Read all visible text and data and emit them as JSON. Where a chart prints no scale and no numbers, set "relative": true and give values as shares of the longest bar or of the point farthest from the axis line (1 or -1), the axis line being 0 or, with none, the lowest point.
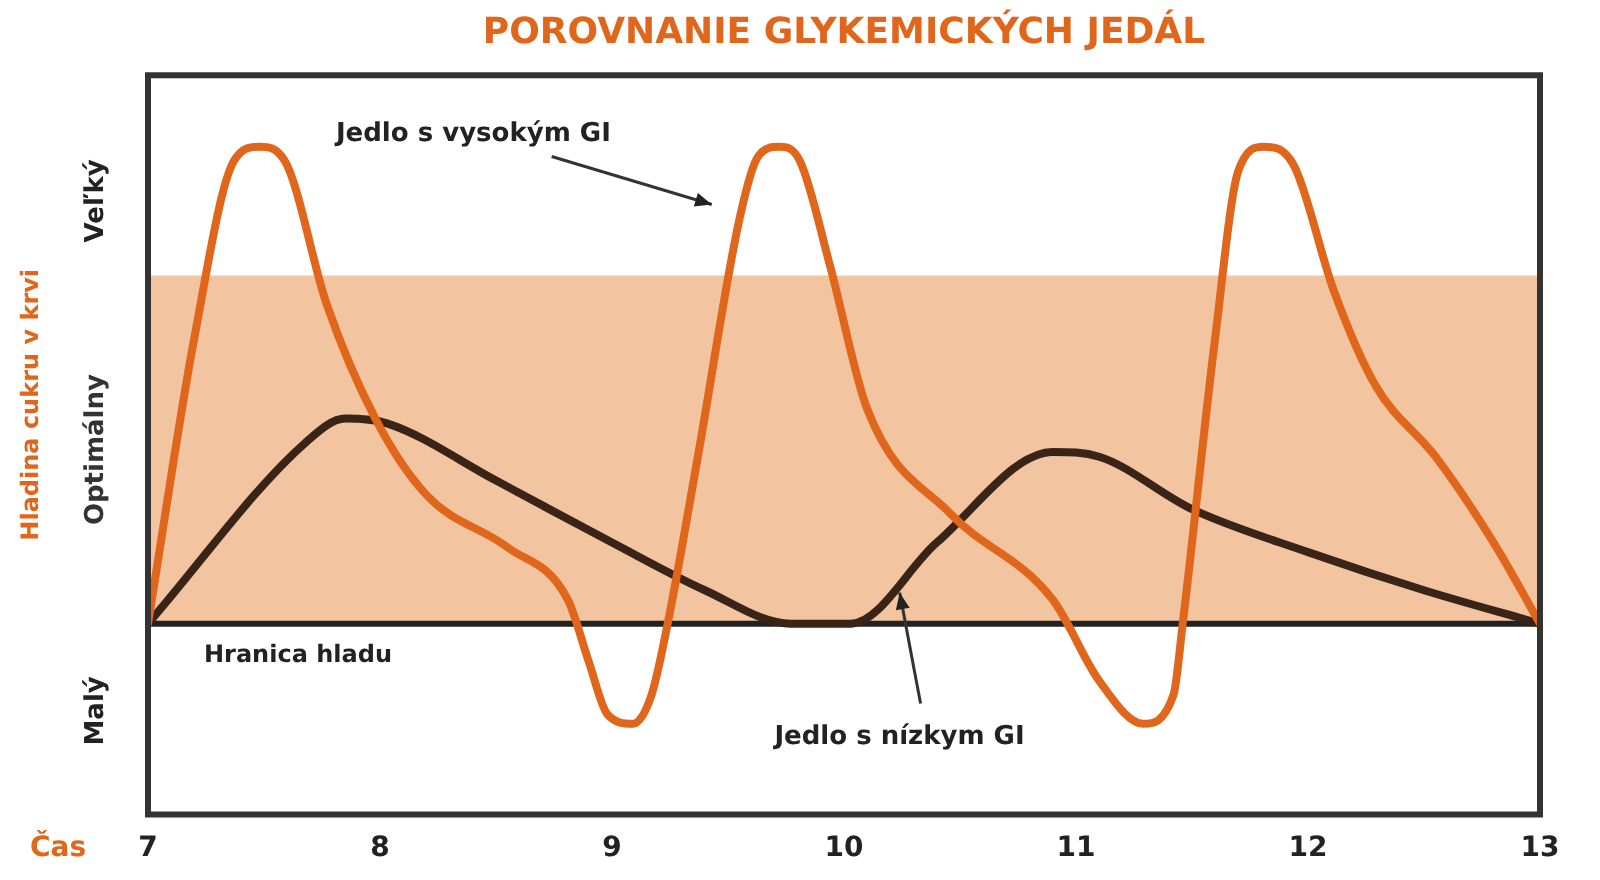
{
  "chart_data": {
    "type": "line",
    "title": "POROVNANIE GLYKEMICKÝCH JEDÁL",
    "xlabel": "Čas",
    "ylabel": "Hladina cukru v krvi",
    "relative": true,
    "xlim": [
      7,
      13
    ],
    "xticks": [
      7,
      8,
      9,
      10,
      11,
      12,
      13
    ],
    "grid": false,
    "legend": false,
    "marker": "none",
    "line_style": "solid",
    "series": [
      {
        "color": "#e0661c",
        "x": [
          7,
          7.2,
          7.37,
          7.48,
          7.59,
          7.77,
          7.98,
          8.2,
          8.55,
          8.81,
          8.9,
          8.98,
          9.09,
          9.17,
          9.24,
          9.37,
          9.55,
          9.63,
          9.72,
          9.81,
          9.94,
          10.1,
          10.46,
          10.9,
          11.1,
          11.29,
          11.42,
          11.46,
          11.6,
          11.7,
          11.81,
          11.94,
          12.11,
          12.29,
          12.55,
          12.8,
          13
        ],
        "values": [
          0,
          0.6,
          0.97,
          1,
          0.97,
          0.67,
          0.43,
          0.27,
          0.16,
          0.05,
          -0.08,
          -0.19,
          -0.21,
          -0.15,
          0,
          0.35,
          0.85,
          0.98,
          1,
          0.97,
          0.75,
          0.45,
          0.23,
          0.05,
          -0.12,
          -0.21,
          -0.15,
          0,
          0.6,
          0.95,
          1,
          0.96,
          0.7,
          0.5,
          0.35,
          0.17,
          0
        ]
      },
      {
        "color": "#3a2418",
        "x": [
          7,
          7.68,
          7.85,
          8.03,
          8.5,
          9,
          9.4,
          9.77,
          10.03,
          10.4,
          10.9,
          11.1,
          11.5,
          12,
          12.5,
          13
        ],
        "values": [
          0,
          0.38,
          0.43,
          0.42,
          0.3,
          0.17,
          0.07,
          0,
          0,
          0.17,
          0.36,
          0.35,
          0.24,
          0.15,
          0.07,
          0
        ]
      }
    ],
    "bands": [
      {
        "axis": "y",
        "from": 0,
        "to": 0.73,
        "label": "Optimálny",
        "color": "#f2c4a0"
      }
    ],
    "ref_lines": [
      {
        "axis": "y",
        "value": 0,
        "label": "Hranica hladu",
        "color": "#222222"
      }
    ],
    "annotations": [
      "Jedlo s vysokým GI",
      "Jedlo s nízkym GI",
      "Veľký",
      "Malý"
    ]
  }
}
